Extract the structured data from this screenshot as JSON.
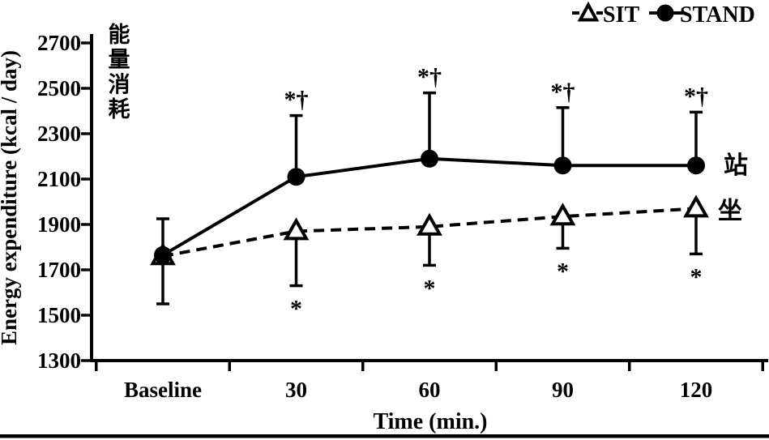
{
  "figure": {
    "background": "#ffffff",
    "axis_color": "#000000",
    "bottom_divider_color": "#000000"
  },
  "legend": {
    "position": "top-right",
    "items": [
      {
        "label": "SIT",
        "marker": "open-triangle",
        "line_style": "dashed",
        "color": "#000000"
      },
      {
        "label": "STAND",
        "marker": "filled-circle",
        "line_style": "solid",
        "color": "#000000"
      }
    ]
  },
  "annotations": {
    "y_axis_chinese_vertical": "能量消耗",
    "stand_series_chinese": "站",
    "sit_series_chinese": "坐",
    "chinese_color": "#4d7cde"
  },
  "chart_data": {
    "type": "line",
    "title": "",
    "xlabel": "Time (min.)",
    "ylabel": "Energy expenditure (kcal / day)",
    "categories": [
      "Baseline",
      "30",
      "60",
      "90",
      "120"
    ],
    "ylim": [
      1300,
      2700
    ],
    "yticks": [
      2700,
      2500,
      2300,
      2100,
      1900,
      1700,
      1500,
      1300
    ],
    "grid": false,
    "legend_position": "top-right",
    "series": [
      {
        "name": "SIT",
        "marker": "open-triangle",
        "line_style": "dashed",
        "color": "#000000",
        "values": [
          1760,
          1870,
          1890,
          1935,
          1970
        ],
        "error_low": [
          1550,
          1630,
          1720,
          1795,
          1770
        ],
        "error_high": [
          null,
          null,
          null,
          null,
          null
        ],
        "sig_labels": [
          "",
          "*",
          "*",
          "*",
          "*"
        ],
        "sig_position": "below"
      },
      {
        "name": "STAND",
        "marker": "filled-circle",
        "line_style": "solid",
        "color": "#000000",
        "values": [
          1765,
          2110,
          2190,
          2160,
          2160
        ],
        "error_low": [
          null,
          null,
          null,
          null,
          null
        ],
        "error_high": [
          1925,
          2380,
          2480,
          2415,
          2395
        ],
        "sig_labels": [
          "",
          "*†",
          "*†",
          "*†",
          "*†"
        ],
        "sig_position": "above"
      }
    ]
  }
}
